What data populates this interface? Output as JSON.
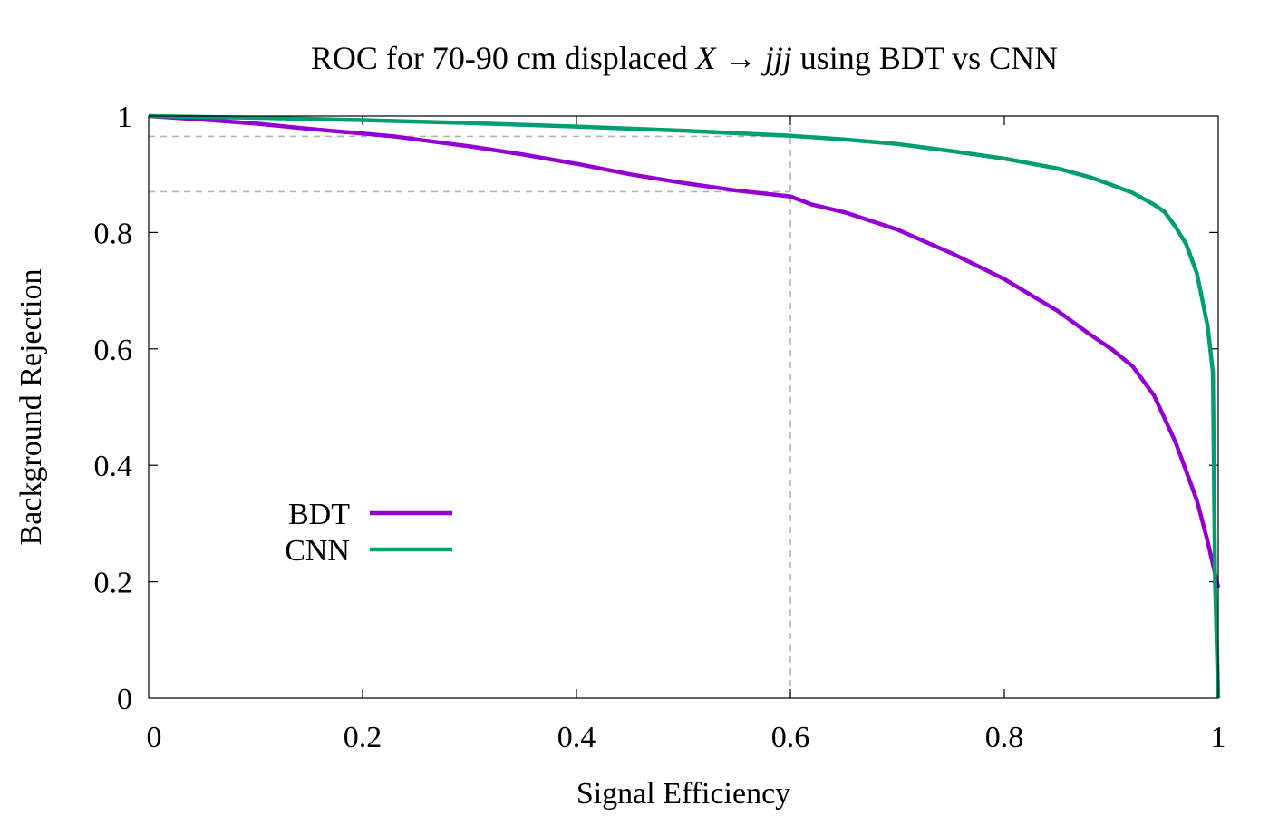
{
  "chart_data": {
    "type": "line",
    "title": "ROC for 70-90 cm displaced X → jjj using BDT vs CNN",
    "title_parts": {
      "prefix": "ROC for 70-90 cm displaced ",
      "var1": "X",
      "arrow": " → ",
      "var2": "jjj",
      "suffix": " using BDT vs CNN"
    },
    "xlabel": "Signal Efficiency",
    "ylabel": "Background Rejection",
    "xlim": [
      0,
      1
    ],
    "ylim": [
      0,
      1
    ],
    "xticks": [
      {
        "value": 0,
        "label": "0"
      },
      {
        "value": 0.2,
        "label": "0.2"
      },
      {
        "value": 0.4,
        "label": "0.4"
      },
      {
        "value": 0.6,
        "label": "0.6"
      },
      {
        "value": 0.8,
        "label": "0.8"
      },
      {
        "value": 1,
        "label": "1"
      }
    ],
    "yticks": [
      {
        "value": 0,
        "label": "0"
      },
      {
        "value": 0.2,
        "label": "0.2"
      },
      {
        "value": 0.4,
        "label": "0.4"
      },
      {
        "value": 0.6,
        "label": "0.6"
      },
      {
        "value": 0.8,
        "label": "0.8"
      },
      {
        "value": 1,
        "label": "1"
      }
    ],
    "grid": false,
    "legend_position": "lower-left",
    "reference_lines": [
      {
        "orientation": "vertical",
        "x": 0.6,
        "y_from": 0,
        "y_to": 1,
        "color": "#b3b3b3",
        "dashed": true
      },
      {
        "orientation": "horizontal",
        "y": 0.965,
        "x_from": 0,
        "x_to": 0.6,
        "color": "#b3b3b3",
        "dashed": true
      },
      {
        "orientation": "horizontal",
        "y": 0.87,
        "x_from": 0,
        "x_to": 0.6,
        "color": "#b3b3b3",
        "dashed": true
      }
    ],
    "series": [
      {
        "name": "BDT",
        "color": "#9400d3",
        "x": [
          0,
          0.05,
          0.1,
          0.15,
          0.2,
          0.23,
          0.25,
          0.3,
          0.35,
          0.4,
          0.45,
          0.5,
          0.55,
          0.6,
          0.62,
          0.65,
          0.7,
          0.75,
          0.8,
          0.85,
          0.88,
          0.9,
          0.92,
          0.94,
          0.96,
          0.98,
          0.99,
          1.0
        ],
        "y": [
          1.0,
          0.994,
          0.987,
          0.978,
          0.97,
          0.965,
          0.96,
          0.948,
          0.934,
          0.918,
          0.9,
          0.885,
          0.872,
          0.862,
          0.848,
          0.835,
          0.805,
          0.765,
          0.72,
          0.665,
          0.625,
          0.6,
          0.57,
          0.52,
          0.44,
          0.34,
          0.27,
          0.19
        ]
      },
      {
        "name": "CNN",
        "color": "#009e73",
        "x": [
          0,
          0.1,
          0.2,
          0.3,
          0.4,
          0.5,
          0.6,
          0.65,
          0.7,
          0.75,
          0.8,
          0.85,
          0.88,
          0.9,
          0.92,
          0.94,
          0.95,
          0.96,
          0.97,
          0.98,
          0.99,
          0.995,
          0.997,
          1.0
        ],
        "y": [
          1.0,
          0.997,
          0.993,
          0.988,
          0.982,
          0.975,
          0.966,
          0.96,
          0.952,
          0.94,
          0.927,
          0.91,
          0.895,
          0.882,
          0.868,
          0.848,
          0.835,
          0.81,
          0.78,
          0.73,
          0.64,
          0.56,
          0.2,
          0.0
        ]
      }
    ]
  }
}
